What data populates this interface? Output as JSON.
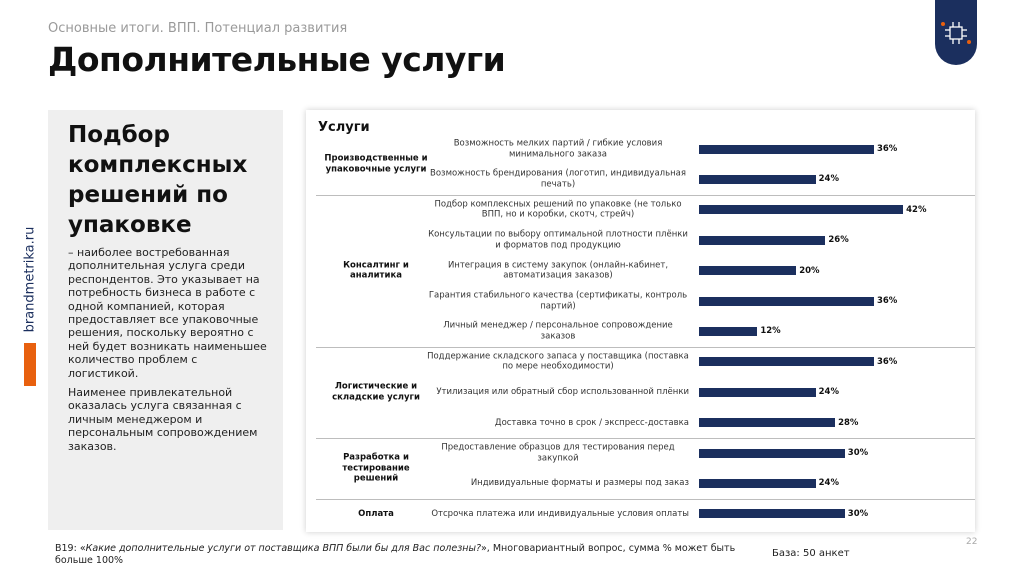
{
  "header": {
    "subtitle": "Основные итоги. ВПП. Потенциал развития",
    "title": "Дополнительные услуги",
    "site": "brandmetrika.ru"
  },
  "panel": {
    "heading": "Подбор комплексных решений по упаковке",
    "paragraphs": [
      "– наиболее востребованная дополнительная услуга среди респондентов. Это указывает на потребность бизнеса в работе с одной компанией, которая предоставляет все упаковочные решения, поскольку вероятно с ней будет возникать наименьшее количество проблем с логистикой.",
      "Наименее привлекательной оказалась услуга связанная с личным менеджером и персональным сопровождением заказов."
    ]
  },
  "chart_data": {
    "type": "bar",
    "title": "Услуги",
    "color": "#1b2f5e",
    "groups": [
      {
        "name": "Производственные и упаковочные услуги",
        "categories": [
          "Возможность мелких партий / гибкие условия минимального заказа",
          "Возможность брендирования (логотип, индивидуальная печать)"
        ],
        "values": [
          36,
          24
        ],
        "value_labels": [
          "36%",
          "24%"
        ]
      },
      {
        "name": "Консалтинг и аналитика",
        "categories": [
          "Подбор комплексных решений по упаковке (не только ВПП, но и коробки, скотч, стрейч)",
          "Консультации по выбору оптимальной плотности плёнки и форматов под продукцию",
          "Интеграция в систему закупок (онлайн-кабинет, автоматизация заказов)",
          "Гарантия стабильного качества (сертификаты, контроль партий)",
          "Личный менеджер / персональное сопровождение заказов"
        ],
        "values": [
          42,
          26,
          20,
          36,
          12
        ],
        "value_labels": [
          "42%",
          "26%",
          "20%",
          "36%",
          "12%"
        ]
      },
      {
        "name": "Логистические и складские услуги",
        "categories": [
          "Поддержание складского запаса у поставщика (поставка по мере необходимости)",
          "Утилизация или обратный сбор использованной плёнки",
          "Доставка точно в срок / экспресс-доставка"
        ],
        "values": [
          36,
          24,
          28
        ],
        "value_labels": [
          "36%",
          "24%",
          "28%"
        ]
      },
      {
        "name": "Разработка и тестирование решений",
        "categories": [
          "Предоставление образцов для тестирования перед закупкой",
          "Индивидуальные форматы и размеры под заказ"
        ],
        "values": [
          30,
          24
        ],
        "value_labels": [
          "30%",
          "24%"
        ]
      },
      {
        "name": "Оплата",
        "categories": [
          "Отсрочка платежа или индивидуальные условия оплаты"
        ],
        "values": [
          30
        ],
        "value_labels": [
          "30%"
        ]
      }
    ]
  },
  "footer": {
    "prefix": "B19: «",
    "question": "Какие дополнительные услуги от поставщика ВПП были бы для Вас полезны?",
    "suffix": "», Многовариантный вопрос, сумма % может быть больше 100%",
    "base": "База: 50 анкет",
    "page": "22"
  }
}
